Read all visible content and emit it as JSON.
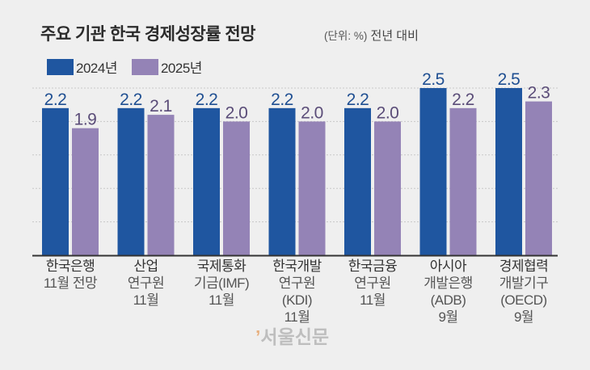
{
  "header": {
    "title": "주요 기관 한국 경제성장률 전망",
    "unit_paren": "(단위: %)",
    "unit_note": "전년 대비"
  },
  "watermark": {
    "mark": "’",
    "text": "서울신문"
  },
  "colors": {
    "series_2024": "#1f56a0",
    "series_2025": "#9483b6",
    "label_2024": "#1f4f92",
    "label_2025": "#5a4c78",
    "grid": "#c8c8c8",
    "axis": "#333333"
  },
  "chart_data": {
    "type": "bar",
    "title": "주요 기관 한국 경제성장률 전망",
    "subtitle": "(단위: %) 전년 대비",
    "xlabel": "",
    "ylabel": "%",
    "ylim": [
      0,
      2.5
    ],
    "grid": true,
    "gridlines": [
      0.5,
      1.0,
      1.5,
      2.0,
      2.5
    ],
    "legend_position": "top-left",
    "categories": [
      {
        "lines": [
          "한국은행",
          "11월 전망"
        ]
      },
      {
        "lines": [
          "산업",
          "연구원",
          "11월"
        ]
      },
      {
        "lines": [
          "국제통화",
          "기금(IMF)",
          "11월"
        ]
      },
      {
        "lines": [
          "한국개발",
          "연구원",
          "(KDI)",
          "11월"
        ]
      },
      {
        "lines": [
          "한국금융",
          "연구원",
          "11월"
        ]
      },
      {
        "lines": [
          "아시아",
          "개발은행",
          "(ADB)",
          "9월"
        ]
      },
      {
        "lines": [
          "경제협력",
          "개발기구",
          "(OECD)",
          "9월"
        ]
      }
    ],
    "series": [
      {
        "name": "2024년",
        "values": [
          2.2,
          2.2,
          2.2,
          2.2,
          2.2,
          2.5,
          2.5
        ],
        "labels": [
          "2.2",
          "2.2",
          "2.2",
          "2.2",
          "2.2",
          "2.5",
          "2.5"
        ]
      },
      {
        "name": "2025년",
        "values": [
          1.9,
          2.1,
          2.0,
          2.0,
          2.0,
          2.2,
          2.3
        ],
        "labels": [
          "1.9",
          "2.1",
          "2.0",
          "2.0",
          "2.0",
          "2.2",
          "2.3"
        ]
      }
    ]
  }
}
